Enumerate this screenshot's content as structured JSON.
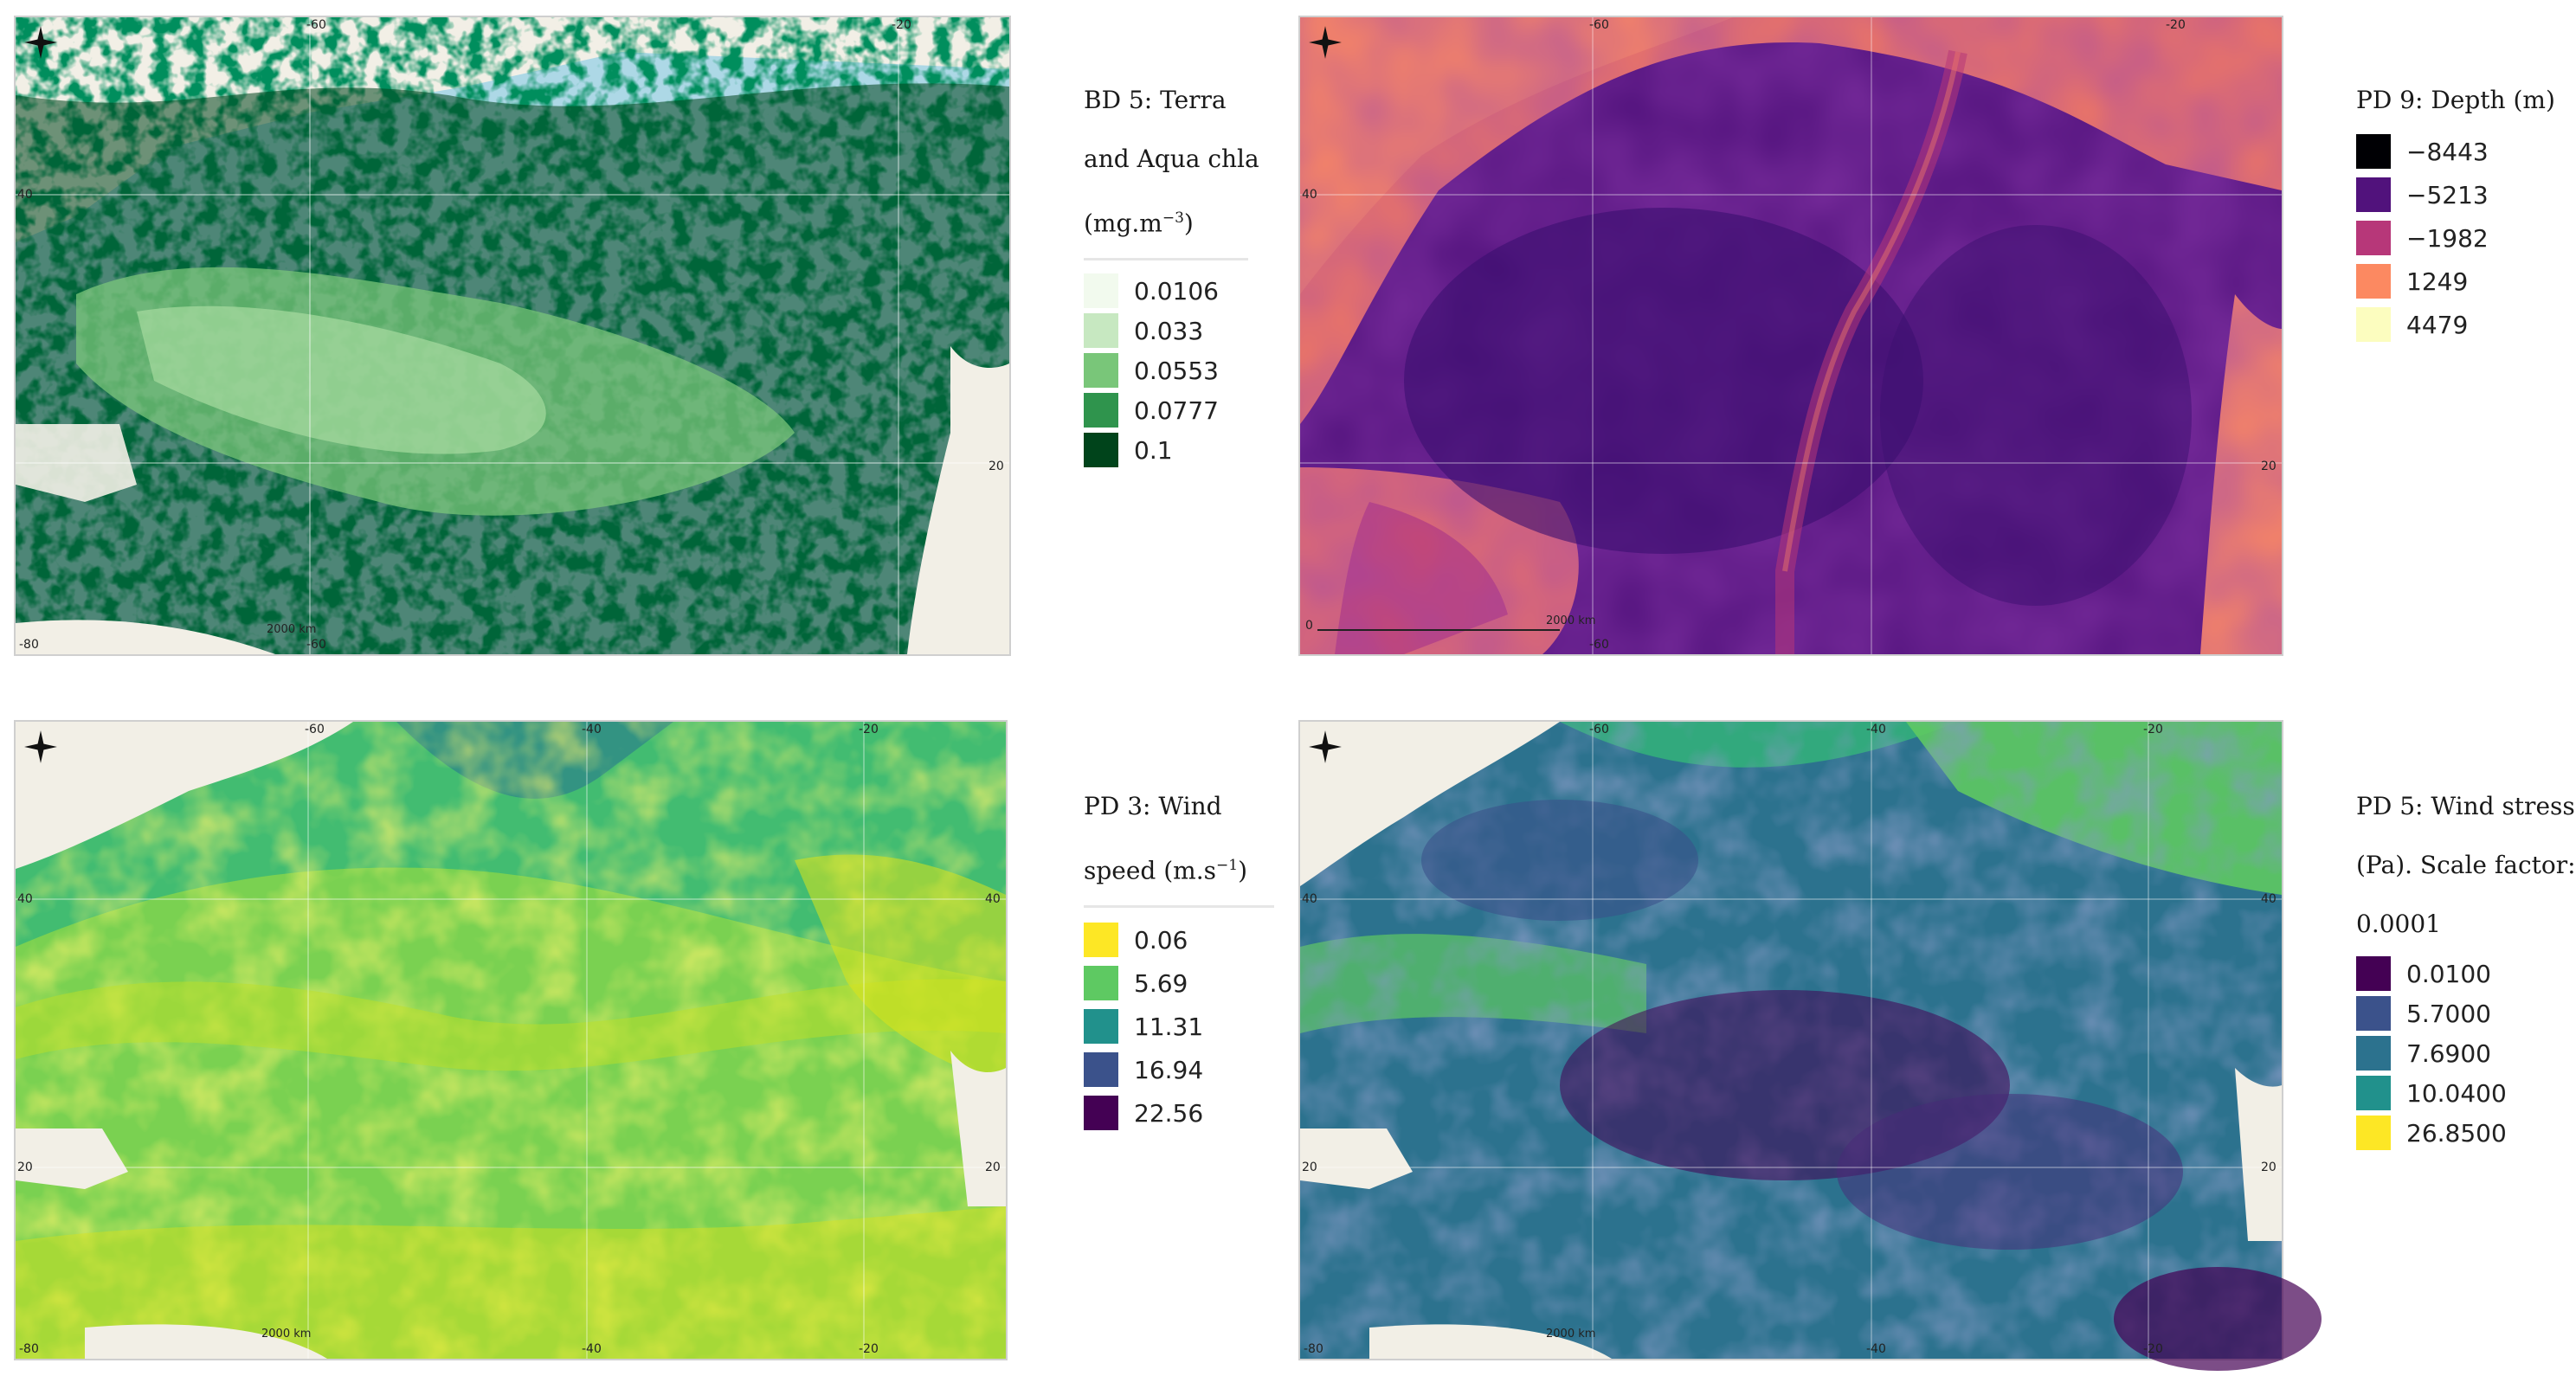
{
  "maps": [
    {
      "id": "chla",
      "title_lines": [
        "BD 5: Terra",
        "and Aqua chla",
        "(mg.m"
      ],
      "title_sup": "−3",
      "title_tail": ")",
      "classes": [
        {
          "value": "0.0106",
          "color": "#f2faee"
        },
        {
          "value": "0.033",
          "color": "#c7e8c1"
        },
        {
          "value": "0.0553",
          "color": "#79c679"
        },
        {
          "value": "0.0777",
          "color": "#2f944d"
        },
        {
          "value": "0.1",
          "color": "#00441b"
        }
      ],
      "ticks": {
        "top1": "-60",
        "top2": "-20",
        "left1": "40",
        "right1": "20",
        "bottom1": "-60",
        "corner": "-80"
      },
      "scale_label": "2000 km"
    },
    {
      "id": "depth",
      "title_lines": [
        "PD 9: Depth (m)"
      ],
      "classes": [
        {
          "value": "−8443",
          "color": "#000004"
        },
        {
          "value": "−5213",
          "color": "#51127c"
        },
        {
          "value": "−1982",
          "color": "#b73779"
        },
        {
          "value": "1249",
          "color": "#fc8961"
        },
        {
          "value": "4479",
          "color": "#fcfdbf"
        }
      ],
      "ticks": {
        "top1": "-60",
        "top2": "-20",
        "left1": "40",
        "right1": "20",
        "bottom1": "-60",
        "corner": "0"
      },
      "scale_label": "2000 km"
    },
    {
      "id": "wind_speed",
      "title_lines": [
        "PD 3: Wind",
        "speed (m.s"
      ],
      "title_sup": "−1",
      "title_tail": ")",
      "classes": [
        {
          "value": "0.06",
          "color": "#fde725"
        },
        {
          "value": "5.69",
          "color": "#5ec962"
        },
        {
          "value": "11.31",
          "color": "#21918c"
        },
        {
          "value": "16.94",
          "color": "#3b528b"
        },
        {
          "value": "22.56",
          "color": "#440154"
        }
      ],
      "ticks": {
        "top1": "-60",
        "top2": "-40",
        "top3": "-20",
        "left1": "40",
        "right1": "40",
        "left2": "20",
        "right2": "20",
        "bottom1": "-40",
        "bottom2": "-20",
        "corner": "-80"
      },
      "scale_label": "2000 km"
    },
    {
      "id": "wind_stress",
      "title_lines": [
        "PD 5: Wind stress",
        "(Pa). Scale factor:",
        "0.0001"
      ],
      "classes": [
        {
          "value": "0.0100",
          "color": "#440154"
        },
        {
          "value": "5.7000",
          "color": "#3b528b"
        },
        {
          "value": "7.6900",
          "color": "#2c728e"
        },
        {
          "value": "10.0400",
          "color": "#21918c"
        },
        {
          "value": "26.8500",
          "color": "#fde725"
        }
      ],
      "ticks": {
        "top1": "-60",
        "top2": "-40",
        "top3": "-20",
        "left1": "40",
        "right1": "40",
        "left2": "20",
        "right2": "20",
        "bottom1": "-40",
        "bottom2": "-20",
        "corner": "-80"
      },
      "scale_label": "2000 km"
    }
  ]
}
